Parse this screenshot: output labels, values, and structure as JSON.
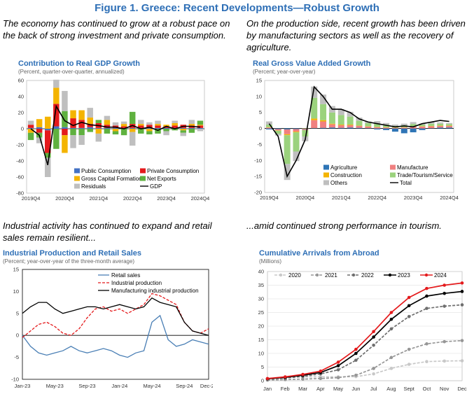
{
  "figure_title": "Figure 1. Greece: Recent Developments—Robust Growth",
  "captions": {
    "top_left": "The economy has continued to grow at a robust pace on the back of strong investment and private consumption.",
    "top_right": "On the production side, recent growth has been driven by manufacturing sectors as well as the recovery of agriculture.",
    "bottom_left": "Industrial activity has continued to expand and retail sales remain resilient...",
    "bottom_right": "...amid continued strong performance in tourism."
  },
  "colors": {
    "title_blue": "#2E6FB6",
    "public": "#4472C4",
    "private": "#E41A1C",
    "gcf": "#F4B400",
    "netexp": "#5FB13F",
    "resid": "#BFBFBF",
    "agri": "#2E75B6",
    "manuf": "#F08080",
    "constr": "#F4B400",
    "trade": "#9BD27D",
    "others": "#BFBFBF"
  },
  "chart_data": [
    {
      "id": "gdp",
      "type": "bar",
      "title": "Contribution to Real GDP Growth",
      "subtitle": "(Percent, quarter-over-quarter, annualized)",
      "ylim": [
        -80,
        60
      ],
      "yticks": [
        -80,
        -60,
        -40,
        -20,
        0,
        20,
        40,
        60
      ],
      "xtick_labels": [
        "2019Q4",
        "2020Q4",
        "2021Q4",
        "2022Q4",
        "2023Q4",
        "2024Q4"
      ],
      "xtick_index": [
        0,
        4,
        8,
        12,
        16,
        20
      ],
      "categories": [
        "2019Q4",
        "2020Q1",
        "2020Q2",
        "2020Q3",
        "2020Q4",
        "2021Q1",
        "2021Q2",
        "2021Q3",
        "2021Q4",
        "2022Q1",
        "2022Q2",
        "2022Q3",
        "2022Q4",
        "2023Q1",
        "2023Q2",
        "2023Q3",
        "2023Q4",
        "2024Q1",
        "2024Q2",
        "2024Q3",
        "2024Q4"
      ],
      "series": [
        {
          "name": "Public Consumption",
          "key": "public",
          "kind": "bar",
          "values": [
            1,
            2,
            -2,
            3,
            2,
            1,
            1,
            2,
            1,
            1,
            1,
            1,
            1,
            1,
            1,
            1,
            1,
            1,
            1,
            1,
            1
          ]
        },
        {
          "name": "Private Consumption",
          "key": "private",
          "kind": "bar",
          "values": [
            4,
            -5,
            -28,
            28,
            -8,
            12,
            10,
            4,
            6,
            4,
            3,
            2,
            5,
            3,
            4,
            3,
            2,
            3,
            4,
            3,
            3
          ]
        },
        {
          "name": "Gross Capital Formation",
          "key": "gcf",
          "kind": "bar",
          "values": [
            -5,
            10,
            15,
            20,
            -22,
            10,
            12,
            8,
            -6,
            6,
            -3,
            3,
            -4,
            2,
            -3,
            2,
            2,
            3,
            -2,
            2,
            1
          ]
        },
        {
          "name": "Net Exports",
          "key": "netexp",
          "kind": "bar",
          "values": [
            -9,
            -6,
            -6,
            -25,
            20,
            -8,
            -8,
            -4,
            4,
            -6,
            -4,
            -8,
            15,
            -6,
            -4,
            -6,
            -3,
            -2,
            -3,
            -5,
            5
          ]
        },
        {
          "name": "Residuals",
          "key": "resid",
          "kind": "bar",
          "values": [
            5,
            -7,
            -24,
            10,
            25,
            -16,
            -12,
            12,
            -10,
            5,
            4,
            3,
            -17,
            5,
            3,
            4,
            -5,
            3,
            -4,
            5,
            -3
          ]
        },
        {
          "name": "GDP",
          "key": "gdp",
          "kind": "line",
          "values": [
            0,
            -8,
            -45,
            28,
            10,
            4,
            8,
            5,
            4,
            2,
            2,
            0,
            4,
            0,
            2,
            -2,
            3,
            0,
            3,
            3,
            2
          ]
        }
      ]
    },
    {
      "id": "gva",
      "type": "bar",
      "title": "Real Gross Value Added Growth",
      "subtitle": "(Percent; year-over-year)",
      "ylim": [
        -20,
        15
      ],
      "yticks": [
        -20,
        -15,
        -10,
        -5,
        0,
        5,
        10,
        15
      ],
      "xtick_labels": [
        "2019Q4",
        "2020Q4",
        "2021Q4",
        "2022Q4",
        "2023Q4",
        "2024Q4"
      ],
      "xtick_index": [
        0,
        4,
        8,
        12,
        16,
        20
      ],
      "categories": [
        "2019Q4",
        "2020Q1",
        "2020Q2",
        "2020Q3",
        "2020Q4",
        "2021Q1",
        "2021Q2",
        "2021Q3",
        "2021Q4",
        "2022Q1",
        "2022Q2",
        "2022Q3",
        "2022Q4",
        "2023Q1",
        "2023Q2",
        "2023Q3",
        "2023Q4",
        "2024Q1",
        "2024Q2",
        "2024Q3",
        "2024Q4"
      ],
      "series": [
        {
          "name": "Agriculture",
          "key": "agri",
          "kind": "bar",
          "values": [
            -0.3,
            -0.2,
            -0.3,
            -0.2,
            -0.2,
            0.1,
            0.2,
            0.3,
            0.2,
            0.3,
            0.2,
            0.1,
            -0.3,
            -0.5,
            -1.0,
            -1.5,
            -1.2,
            -0.5,
            0.1,
            0.3,
            0.3
          ]
        },
        {
          "name": "Manufacture",
          "key": "manuf",
          "kind": "bar",
          "values": [
            0.3,
            -0.4,
            -1.5,
            -0.8,
            -0.3,
            2.5,
            2.0,
            1.0,
            0.8,
            0.7,
            0.6,
            0.5,
            0.4,
            0.3,
            0.2,
            0.3,
            0.5,
            0.6,
            0.6,
            0.5,
            0.5
          ]
        },
        {
          "name": "Construction",
          "key": "constr",
          "kind": "bar",
          "values": [
            0.1,
            -0.1,
            -0.3,
            -0.2,
            0.1,
            0.5,
            0.4,
            0.2,
            0.2,
            0.2,
            0.1,
            0.1,
            0.1,
            0.1,
            0.1,
            0.1,
            0.1,
            0.1,
            0.1,
            0.1,
            0.1
          ]
        },
        {
          "name": "Trade/Tourism/Service",
          "key": "trade",
          "kind": "bar",
          "values": [
            0.8,
            -1.0,
            -9.0,
            -6.0,
            -2.0,
            6.5,
            5.0,
            3.5,
            3.0,
            2.5,
            1.5,
            1.0,
            1.0,
            0.8,
            0.5,
            0.6,
            0.8,
            0.5,
            0.7,
            0.6,
            0.5
          ]
        },
        {
          "name": "Others",
          "key": "others",
          "kind": "bar",
          "values": [
            1.0,
            -0.5,
            -5.0,
            -3.0,
            -1.5,
            3.5,
            3.0,
            2.0,
            1.8,
            1.5,
            1.0,
            0.5,
            0.8,
            0.5,
            0.4,
            0.5,
            0.6,
            0.3,
            0.5,
            0.4,
            0.3
          ]
        },
        {
          "name": "Total",
          "key": "total",
          "kind": "line",
          "values": [
            1.5,
            -2.5,
            -15,
            -10,
            -3.5,
            13,
            10,
            6,
            6,
            5,
            3,
            2,
            1.5,
            1,
            0.5,
            0.8,
            0.5,
            1.5,
            2,
            2.5,
            2.2
          ]
        }
      ]
    },
    {
      "id": "ip",
      "type": "line",
      "title": "Industrial Production and Retail Sales",
      "subtitle": "(Percent; year-over-year of the three-month average)",
      "ylim": [
        -10,
        15
      ],
      "yticks": [
        -10,
        -5,
        0,
        5,
        10,
        15
      ],
      "xtick_labels": [
        "Jan-23",
        "May-23",
        "Sep-23",
        "Jan-24",
        "May-24",
        "Sep-24",
        "Dec-24"
      ],
      "xtick_index": [
        0,
        4,
        8,
        12,
        16,
        20,
        23
      ],
      "series": [
        {
          "name": "Retail sales",
          "key": "retail",
          "style": "solid",
          "color": "#4A7FB5",
          "values": [
            0,
            -2.5,
            -4,
            -4.5,
            -4,
            -3.5,
            -2.5,
            -3.5,
            -4,
            -3.5,
            -3,
            -3.5,
            -4.5,
            -5,
            -4,
            -3.5,
            3,
            4.5,
            -1,
            -2.5,
            -2,
            -1,
            -1.5,
            -2
          ]
        },
        {
          "name": "Industrial production",
          "key": "ip",
          "style": "dashed",
          "color": "#E41A1C",
          "values": [
            -0.5,
            1,
            2.5,
            3,
            2,
            0.5,
            0,
            1.5,
            4,
            6,
            6.5,
            5.5,
            6,
            5,
            6,
            7,
            9.5,
            9,
            8,
            7,
            3,
            1,
            0.5,
            1.5
          ]
        },
        {
          "name": "Manufacturing industrial production",
          "key": "mip",
          "style": "solid",
          "color": "#000000",
          "values": [
            5,
            6.5,
            7.5,
            7.5,
            6,
            5,
            5.5,
            6,
            6.5,
            6.5,
            6,
            6.5,
            7,
            6.5,
            6,
            6.5,
            8.5,
            7.5,
            7,
            6.5,
            3,
            1,
            0.5,
            0
          ]
        }
      ]
    },
    {
      "id": "arrivals",
      "type": "line",
      "title": "Cumulative Arrivals from Abroad",
      "subtitle": "(Millions)",
      "ylim": [
        0,
        40
      ],
      "yticks": [
        0,
        5,
        10,
        15,
        20,
        25,
        30,
        35,
        40
      ],
      "categories": [
        "Jan",
        "Feb",
        "Mar",
        "Apr",
        "May",
        "Jun",
        "Jul",
        "Aug",
        "Sept",
        "Oct",
        "Nov",
        "Dec"
      ],
      "series": [
        {
          "name": "2020",
          "key": "y2020",
          "color": "#C8C8C8",
          "style": "dashed",
          "values": [
            0.6,
            1.1,
            1.4,
            1.4,
            1.4,
            1.5,
            2.5,
            4.5,
            6.0,
            7.0,
            7.2,
            7.3
          ]
        },
        {
          "name": "2021",
          "key": "y2021",
          "color": "#969696",
          "style": "dashed",
          "values": [
            0.2,
            0.4,
            0.6,
            0.8,
            1.1,
            2.0,
            4.5,
            8.5,
            11.5,
            13.5,
            14.3,
            14.7
          ]
        },
        {
          "name": "2022",
          "key": "y2022",
          "color": "#6E6E6E",
          "style": "dashed",
          "values": [
            0.6,
            1.0,
            1.6,
            2.5,
            4.0,
            7.5,
            13.0,
            19.0,
            23.5,
            26.5,
            27.3,
            27.8
          ]
        },
        {
          "name": "2023",
          "key": "y2023",
          "color": "#000000",
          "style": "solid",
          "values": [
            0.7,
            1.2,
            2.0,
            3.0,
            5.5,
            10.0,
            16.0,
            22.5,
            27.5,
            31.0,
            32.0,
            32.7
          ]
        },
        {
          "name": "2024",
          "key": "y2024",
          "color": "#E41A1C",
          "style": "solid",
          "values": [
            0.8,
            1.4,
            2.3,
            3.5,
            6.8,
            11.5,
            18.0,
            25.0,
            30.5,
            33.8,
            35.0,
            35.8
          ]
        }
      ]
    }
  ]
}
